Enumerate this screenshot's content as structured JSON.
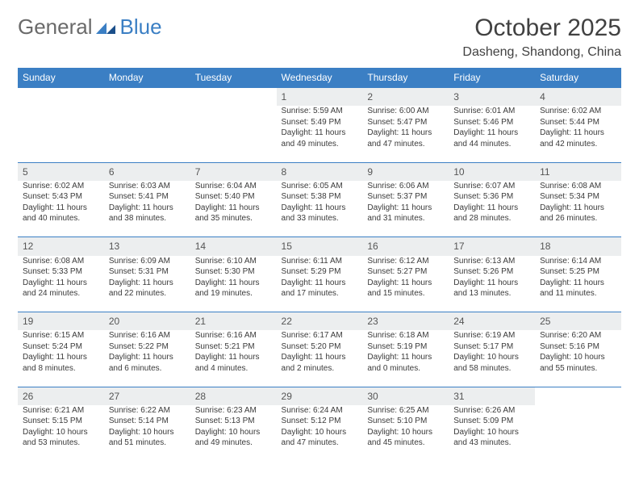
{
  "brand": {
    "word1": "General",
    "word2": "Blue"
  },
  "title": {
    "month": "October 2025",
    "location": "Dasheng, Shandong, China"
  },
  "colors": {
    "header_bg": "#3b7fc4",
    "header_text": "#ffffff",
    "daynum_bg": "#eceeef",
    "rule": "#3b7fc4",
    "text": "#3a3a3a"
  },
  "layout": {
    "cols": 7,
    "rows": 5,
    "cell_font_size_pt": 7.5,
    "header_font_size_pt": 9
  },
  "weekdays": [
    "Sunday",
    "Monday",
    "Tuesday",
    "Wednesday",
    "Thursday",
    "Friday",
    "Saturday"
  ],
  "weeks": [
    [
      null,
      null,
      null,
      {
        "n": "1",
        "sr": "5:59 AM",
        "ss": "5:49 PM",
        "dl": "11 hours and 49 minutes."
      },
      {
        "n": "2",
        "sr": "6:00 AM",
        "ss": "5:47 PM",
        "dl": "11 hours and 47 minutes."
      },
      {
        "n": "3",
        "sr": "6:01 AM",
        "ss": "5:46 PM",
        "dl": "11 hours and 44 minutes."
      },
      {
        "n": "4",
        "sr": "6:02 AM",
        "ss": "5:44 PM",
        "dl": "11 hours and 42 minutes."
      }
    ],
    [
      {
        "n": "5",
        "sr": "6:02 AM",
        "ss": "5:43 PM",
        "dl": "11 hours and 40 minutes."
      },
      {
        "n": "6",
        "sr": "6:03 AM",
        "ss": "5:41 PM",
        "dl": "11 hours and 38 minutes."
      },
      {
        "n": "7",
        "sr": "6:04 AM",
        "ss": "5:40 PM",
        "dl": "11 hours and 35 minutes."
      },
      {
        "n": "8",
        "sr": "6:05 AM",
        "ss": "5:38 PM",
        "dl": "11 hours and 33 minutes."
      },
      {
        "n": "9",
        "sr": "6:06 AM",
        "ss": "5:37 PM",
        "dl": "11 hours and 31 minutes."
      },
      {
        "n": "10",
        "sr": "6:07 AM",
        "ss": "5:36 PM",
        "dl": "11 hours and 28 minutes."
      },
      {
        "n": "11",
        "sr": "6:08 AM",
        "ss": "5:34 PM",
        "dl": "11 hours and 26 minutes."
      }
    ],
    [
      {
        "n": "12",
        "sr": "6:08 AM",
        "ss": "5:33 PM",
        "dl": "11 hours and 24 minutes."
      },
      {
        "n": "13",
        "sr": "6:09 AM",
        "ss": "5:31 PM",
        "dl": "11 hours and 22 minutes."
      },
      {
        "n": "14",
        "sr": "6:10 AM",
        "ss": "5:30 PM",
        "dl": "11 hours and 19 minutes."
      },
      {
        "n": "15",
        "sr": "6:11 AM",
        "ss": "5:29 PM",
        "dl": "11 hours and 17 minutes."
      },
      {
        "n": "16",
        "sr": "6:12 AM",
        "ss": "5:27 PM",
        "dl": "11 hours and 15 minutes."
      },
      {
        "n": "17",
        "sr": "6:13 AM",
        "ss": "5:26 PM",
        "dl": "11 hours and 13 minutes."
      },
      {
        "n": "18",
        "sr": "6:14 AM",
        "ss": "5:25 PM",
        "dl": "11 hours and 11 minutes."
      }
    ],
    [
      {
        "n": "19",
        "sr": "6:15 AM",
        "ss": "5:24 PM",
        "dl": "11 hours and 8 minutes."
      },
      {
        "n": "20",
        "sr": "6:16 AM",
        "ss": "5:22 PM",
        "dl": "11 hours and 6 minutes."
      },
      {
        "n": "21",
        "sr": "6:16 AM",
        "ss": "5:21 PM",
        "dl": "11 hours and 4 minutes."
      },
      {
        "n": "22",
        "sr": "6:17 AM",
        "ss": "5:20 PM",
        "dl": "11 hours and 2 minutes."
      },
      {
        "n": "23",
        "sr": "6:18 AM",
        "ss": "5:19 PM",
        "dl": "11 hours and 0 minutes."
      },
      {
        "n": "24",
        "sr": "6:19 AM",
        "ss": "5:17 PM",
        "dl": "10 hours and 58 minutes."
      },
      {
        "n": "25",
        "sr": "6:20 AM",
        "ss": "5:16 PM",
        "dl": "10 hours and 55 minutes."
      }
    ],
    [
      {
        "n": "26",
        "sr": "6:21 AM",
        "ss": "5:15 PM",
        "dl": "10 hours and 53 minutes."
      },
      {
        "n": "27",
        "sr": "6:22 AM",
        "ss": "5:14 PM",
        "dl": "10 hours and 51 minutes."
      },
      {
        "n": "28",
        "sr": "6:23 AM",
        "ss": "5:13 PM",
        "dl": "10 hours and 49 minutes."
      },
      {
        "n": "29",
        "sr": "6:24 AM",
        "ss": "5:12 PM",
        "dl": "10 hours and 47 minutes."
      },
      {
        "n": "30",
        "sr": "6:25 AM",
        "ss": "5:10 PM",
        "dl": "10 hours and 45 minutes."
      },
      {
        "n": "31",
        "sr": "6:26 AM",
        "ss": "5:09 PM",
        "dl": "10 hours and 43 minutes."
      },
      null
    ]
  ],
  "labels": {
    "sunrise": "Sunrise:",
    "sunset": "Sunset:",
    "daylight": "Daylight:"
  }
}
